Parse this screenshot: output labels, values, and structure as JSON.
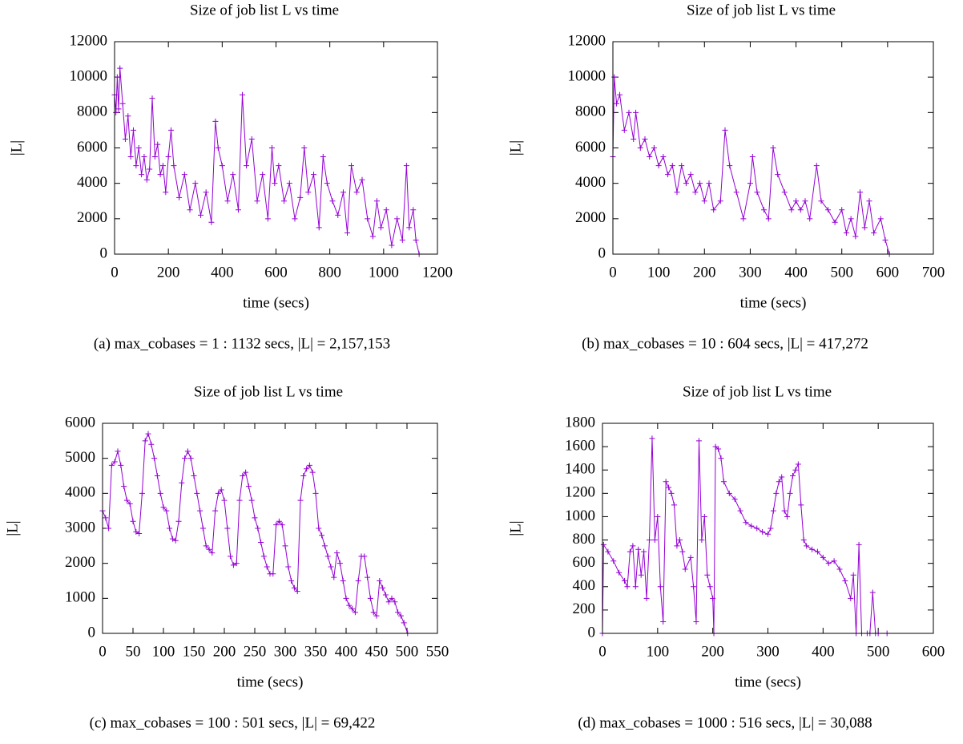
{
  "chart_data": [
    {
      "type": "line",
      "title": "Size of job list L vs time",
      "x_label": "time (secs)",
      "y_label": "|L|",
      "caption": "(a) max_cobases = 1 : 1132 secs, |L| = 2,157,153",
      "color": "#9400d3",
      "xlim": [
        0,
        1200
      ],
      "xticks": [
        0,
        200,
        400,
        600,
        800,
        1000,
        1200
      ],
      "ylim": [
        0,
        12000
      ],
      "yticks": [
        0,
        2000,
        4000,
        6000,
        8000,
        10000,
        12000
      ],
      "x": [
        0,
        5,
        10,
        15,
        20,
        30,
        40,
        50,
        60,
        70,
        80,
        90,
        100,
        110,
        120,
        130,
        140,
        150,
        160,
        170,
        180,
        190,
        200,
        210,
        220,
        240,
        260,
        280,
        300,
        320,
        340,
        360,
        375,
        385,
        400,
        420,
        440,
        460,
        475,
        490,
        510,
        530,
        550,
        570,
        585,
        595,
        610,
        630,
        650,
        670,
        690,
        705,
        720,
        740,
        760,
        775,
        790,
        810,
        830,
        850,
        865,
        880,
        900,
        920,
        940,
        960,
        975,
        990,
        1010,
        1030,
        1050,
        1070,
        1085,
        1095,
        1110,
        1120,
        1132
      ],
      "values": [
        9000,
        8000,
        10000,
        8200,
        10500,
        8500,
        6500,
        7800,
        5500,
        7000,
        5000,
        6000,
        4500,
        5500,
        4200,
        4800,
        8800,
        5500,
        6200,
        4500,
        5000,
        3500,
        5500,
        7000,
        5000,
        3200,
        4500,
        2500,
        4000,
        2200,
        3500,
        1800,
        7500,
        6000,
        5000,
        3000,
        4500,
        2500,
        9000,
        5000,
        6500,
        3000,
        4500,
        2000,
        6000,
        4000,
        5000,
        3000,
        4000,
        2000,
        3200,
        6000,
        3500,
        4500,
        1500,
        5500,
        4000,
        3000,
        2200,
        3500,
        1200,
        5000,
        3500,
        4200,
        2000,
        1000,
        3000,
        1500,
        2500,
        500,
        2000,
        800,
        5000,
        1500,
        2500,
        800,
        0
      ]
    },
    {
      "type": "line",
      "title": "Size of job list L vs time",
      "x_label": "time (secs)",
      "y_label": "|L|",
      "caption": "(b) max_cobases = 10 : 604 secs, |L| = 417,272",
      "color": "#9400d3",
      "xlim": [
        0,
        700
      ],
      "xticks": [
        0,
        100,
        200,
        300,
        400,
        500,
        600,
        700
      ],
      "ylim": [
        0,
        12000
      ],
      "yticks": [
        0,
        2000,
        4000,
        6000,
        8000,
        10000,
        12000
      ],
      "x": [
        0,
        3,
        8,
        15,
        25,
        35,
        45,
        50,
        60,
        70,
        80,
        90,
        100,
        110,
        120,
        130,
        140,
        150,
        160,
        170,
        180,
        190,
        200,
        210,
        220,
        235,
        245,
        255,
        270,
        285,
        300,
        305,
        315,
        330,
        340,
        350,
        360,
        375,
        390,
        400,
        410,
        420,
        430,
        445,
        455,
        470,
        485,
        500,
        510,
        520,
        530,
        540,
        550,
        560,
        570,
        585,
        595,
        604
      ],
      "values": [
        5500,
        10000,
        8500,
        9000,
        7000,
        8000,
        6500,
        8000,
        6000,
        6500,
        5500,
        6000,
        5000,
        5500,
        4500,
        5000,
        3500,
        5000,
        4000,
        4500,
        3500,
        4000,
        3000,
        4000,
        2500,
        3000,
        7000,
        5000,
        3500,
        2000,
        4000,
        5500,
        3500,
        2500,
        2000,
        6000,
        4500,
        3500,
        2500,
        3000,
        2500,
        3000,
        2000,
        5000,
        3000,
        2500,
        1800,
        2500,
        1200,
        2000,
        1000,
        3500,
        1500,
        3000,
        1200,
        2000,
        800,
        0
      ]
    },
    {
      "type": "line",
      "title": "Size of job list L vs time",
      "x_label": "time (secs)",
      "y_label": "|L|",
      "caption": "(c) max_cobases = 100 : 501 secs, |L| = 69,422",
      "color": "#9400d3",
      "xlim": [
        0,
        550
      ],
      "xticks": [
        0,
        50,
        100,
        150,
        200,
        250,
        300,
        350,
        400,
        450,
        500,
        550
      ],
      "ylim": [
        0,
        6000
      ],
      "yticks": [
        0,
        1000,
        2000,
        3000,
        4000,
        5000,
        6000
      ],
      "x": [
        0,
        5,
        10,
        15,
        20,
        25,
        30,
        35,
        40,
        45,
        50,
        55,
        60,
        65,
        70,
        75,
        80,
        85,
        90,
        95,
        100,
        105,
        110,
        115,
        120,
        125,
        130,
        135,
        140,
        145,
        150,
        155,
        160,
        165,
        170,
        175,
        180,
        185,
        190,
        195,
        200,
        205,
        210,
        215,
        220,
        225,
        230,
        235,
        240,
        245,
        250,
        255,
        260,
        265,
        270,
        275,
        280,
        285,
        290,
        295,
        300,
        305,
        310,
        315,
        320,
        325,
        330,
        335,
        340,
        345,
        350,
        355,
        360,
        365,
        370,
        375,
        380,
        385,
        390,
        395,
        400,
        405,
        410,
        415,
        420,
        425,
        430,
        435,
        440,
        445,
        450,
        455,
        460,
        465,
        470,
        475,
        480,
        485,
        490,
        495,
        501
      ],
      "values": [
        3500,
        3300,
        3000,
        4800,
        4900,
        5200,
        4800,
        4200,
        3800,
        3700,
        3200,
        2900,
        2850,
        4000,
        5500,
        5700,
        5400,
        5000,
        4500,
        4000,
        3600,
        3500,
        3000,
        2700,
        2650,
        3200,
        4300,
        5000,
        5200,
        5000,
        4500,
        4000,
        3500,
        3000,
        2500,
        2400,
        2300,
        3500,
        4000,
        4100,
        3800,
        3000,
        2200,
        1950,
        2000,
        3800,
        4500,
        4600,
        4200,
        3800,
        3300,
        3000,
        2600,
        2200,
        1900,
        1700,
        1700,
        3100,
        3200,
        3100,
        2500,
        1900,
        1500,
        1300,
        1200,
        3800,
        4500,
        4700,
        4800,
        4600,
        4000,
        3000,
        2800,
        2500,
        2200,
        1900,
        1600,
        2300,
        2000,
        1500,
        1000,
        800,
        700,
        600,
        1500,
        2200,
        2200,
        1600,
        1000,
        600,
        500,
        1500,
        1300,
        1100,
        900,
        1000,
        900,
        600,
        500,
        300,
        0
      ]
    },
    {
      "type": "line",
      "title": "Size of job list L vs time",
      "x_label": "time (secs)",
      "y_label": "|L|",
      "caption": "(d) max_cobases = 1000 : 516 secs, |L| = 30,088",
      "color": "#9400d3",
      "xlim": [
        0,
        600
      ],
      "xticks": [
        0,
        100,
        200,
        300,
        400,
        500,
        600
      ],
      "ylim": [
        0,
        1800
      ],
      "yticks": [
        0,
        200,
        400,
        600,
        800,
        1000,
        1200,
        1400,
        1600,
        1800
      ],
      "x": [
        0,
        2,
        10,
        20,
        30,
        40,
        45,
        50,
        55,
        60,
        65,
        70,
        75,
        80,
        85,
        90,
        95,
        100,
        105,
        110,
        115,
        120,
        125,
        130,
        135,
        140,
        145,
        150,
        160,
        165,
        170,
        175,
        180,
        185,
        190,
        195,
        200,
        202,
        205,
        210,
        215,
        220,
        230,
        240,
        250,
        260,
        270,
        280,
        290,
        300,
        305,
        310,
        315,
        320,
        325,
        330,
        335,
        340,
        345,
        350,
        355,
        360,
        365,
        370,
        380,
        390,
        400,
        410,
        420,
        430,
        440,
        450,
        455,
        460,
        465,
        470,
        480,
        485,
        490,
        495,
        500,
        516
      ],
      "values": [
        0,
        760,
        700,
        620,
        520,
        450,
        400,
        700,
        750,
        400,
        720,
        500,
        700,
        300,
        800,
        1670,
        800,
        1000,
        400,
        100,
        1300,
        1250,
        1200,
        1100,
        750,
        800,
        700,
        550,
        650,
        400,
        100,
        1650,
        800,
        1000,
        500,
        400,
        300,
        0,
        1600,
        1580,
        1500,
        1300,
        1200,
        1150,
        1050,
        950,
        920,
        900,
        870,
        850,
        900,
        1050,
        1200,
        1300,
        1340,
        1050,
        1000,
        1200,
        1350,
        1400,
        1450,
        1100,
        800,
        750,
        720,
        700,
        650,
        600,
        620,
        550,
        450,
        300,
        500,
        0,
        760,
        0,
        0,
        0,
        350,
        0,
        0,
        0
      ]
    }
  ]
}
